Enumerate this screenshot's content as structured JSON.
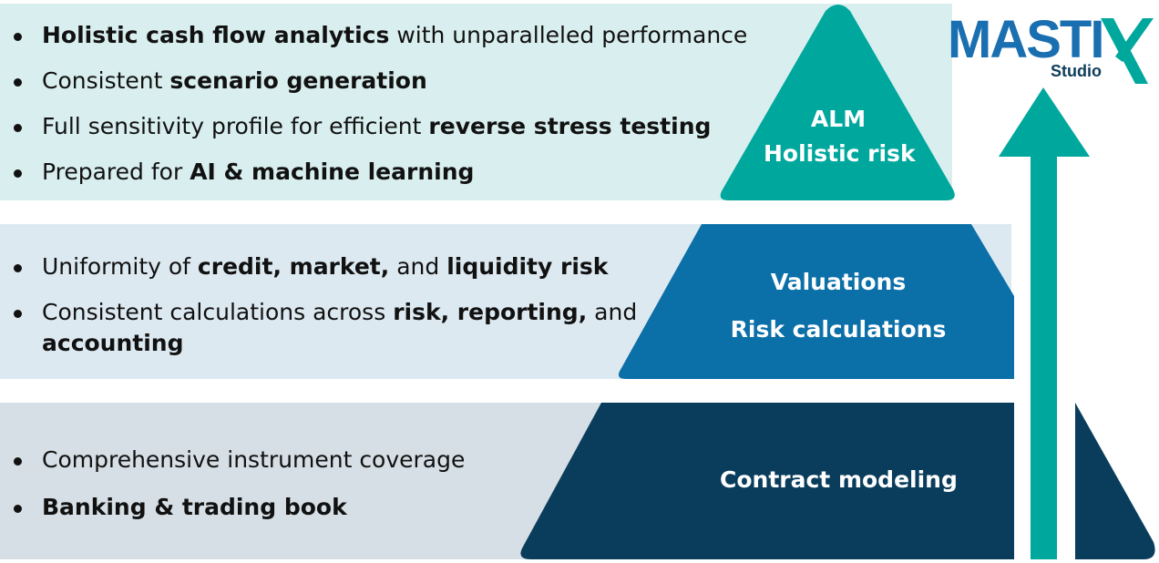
{
  "top": {
    "bullets": [
      [
        {
          "t": "Holistic cash flow analytics",
          "b": true
        },
        {
          "t": " with unparalleled performance",
          "b": false
        }
      ],
      [
        {
          "t": "Consistent ",
          "b": false
        },
        {
          "t": "scenario generation",
          "b": true
        }
      ],
      [
        {
          "t": "Full sensitivity profile for efficient ",
          "b": false
        },
        {
          "t": "reverse stress testing",
          "b": true
        }
      ],
      [
        {
          "t": "Prepared for ",
          "b": false
        },
        {
          "t": "AI & machine learning",
          "b": true
        }
      ]
    ],
    "label_line1": "ALM",
    "label_line2": "Holistic risk"
  },
  "middle": {
    "bullets": [
      [
        {
          "t": "Uniformity of ",
          "b": false
        },
        {
          "t": "credit, market,",
          "b": true
        },
        {
          "t": " and ",
          "b": false
        },
        {
          "t": "liquidity risk",
          "b": true
        }
      ],
      [
        {
          "t": "Consistent calculations across ",
          "b": false
        },
        {
          "t": "risk, reporting,",
          "b": true
        },
        {
          "t": " and ",
          "b": false
        },
        {
          "t": "accounting",
          "b": true
        }
      ]
    ],
    "label_line1": "Valuations",
    "label_line2": "Risk calculations"
  },
  "bottom": {
    "bullets": [
      [
        {
          "t": "Comprehensive instrument coverage",
          "b": false
        }
      ],
      [
        {
          "t": "Banking & trading book",
          "b": true
        }
      ]
    ],
    "label_line1": "Contract modeling"
  },
  "logo": {
    "wordmark": "MASTI",
    "mark": "X",
    "subtext": "Studio"
  },
  "colors": {
    "top_tier": "#00a79d",
    "middle_tier": "#0b6fa8",
    "bottom_tier": "#0a3d5c",
    "arrow": "#00a79d",
    "top_band": "#d9eeee",
    "middle_band": "#dde9f1",
    "bottom_band": "#d6dfe5"
  }
}
